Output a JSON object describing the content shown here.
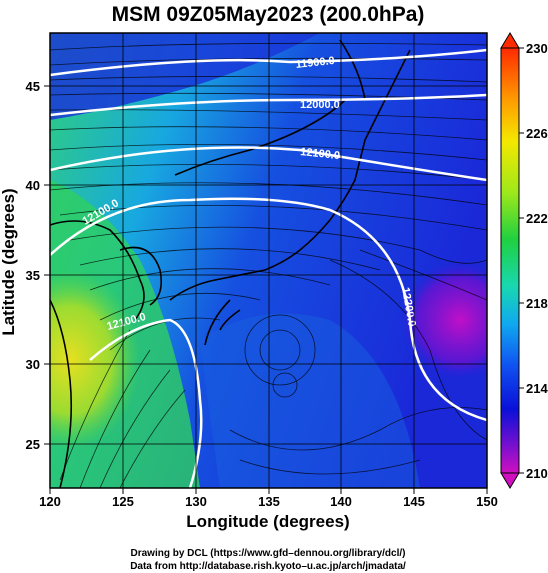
{
  "title": "MSM 09Z05May2023 (200.0hPa)",
  "xlabel": "Longitude (degrees)",
  "ylabel": "Latitude  (degrees)",
  "xticks": [
    "120",
    "125",
    "130",
    "135",
    "140",
    "145",
    "150"
  ],
  "yticks": [
    "25",
    "30",
    "35",
    "40",
    "45"
  ],
  "colorbar": {
    "ticks": [
      "230",
      "226",
      "222",
      "218",
      "214",
      "210"
    ]
  },
  "contour_labels": [
    "11900.0",
    "12000.0",
    "12100.0",
    "12200.0",
    "12100.0",
    "12100.0"
  ],
  "credits": {
    "line1": "Drawing by DCL (https://www.gfd–dennou.org/library/dcl/)",
    "line2": "Data from http://database.rish.kyoto–u.ac.jp/arch/jmadata/"
  },
  "map": {
    "lon_range": [
      120,
      150
    ],
    "lat_range": [
      22.8,
      47.8
    ],
    "colors": {
      "blue": "#1a3fd9",
      "green": "#2ed46a",
      "yellow": "#d6e21a",
      "magenta": "#a010c0",
      "contour": "#ffffff",
      "coast": "#000000"
    }
  }
}
